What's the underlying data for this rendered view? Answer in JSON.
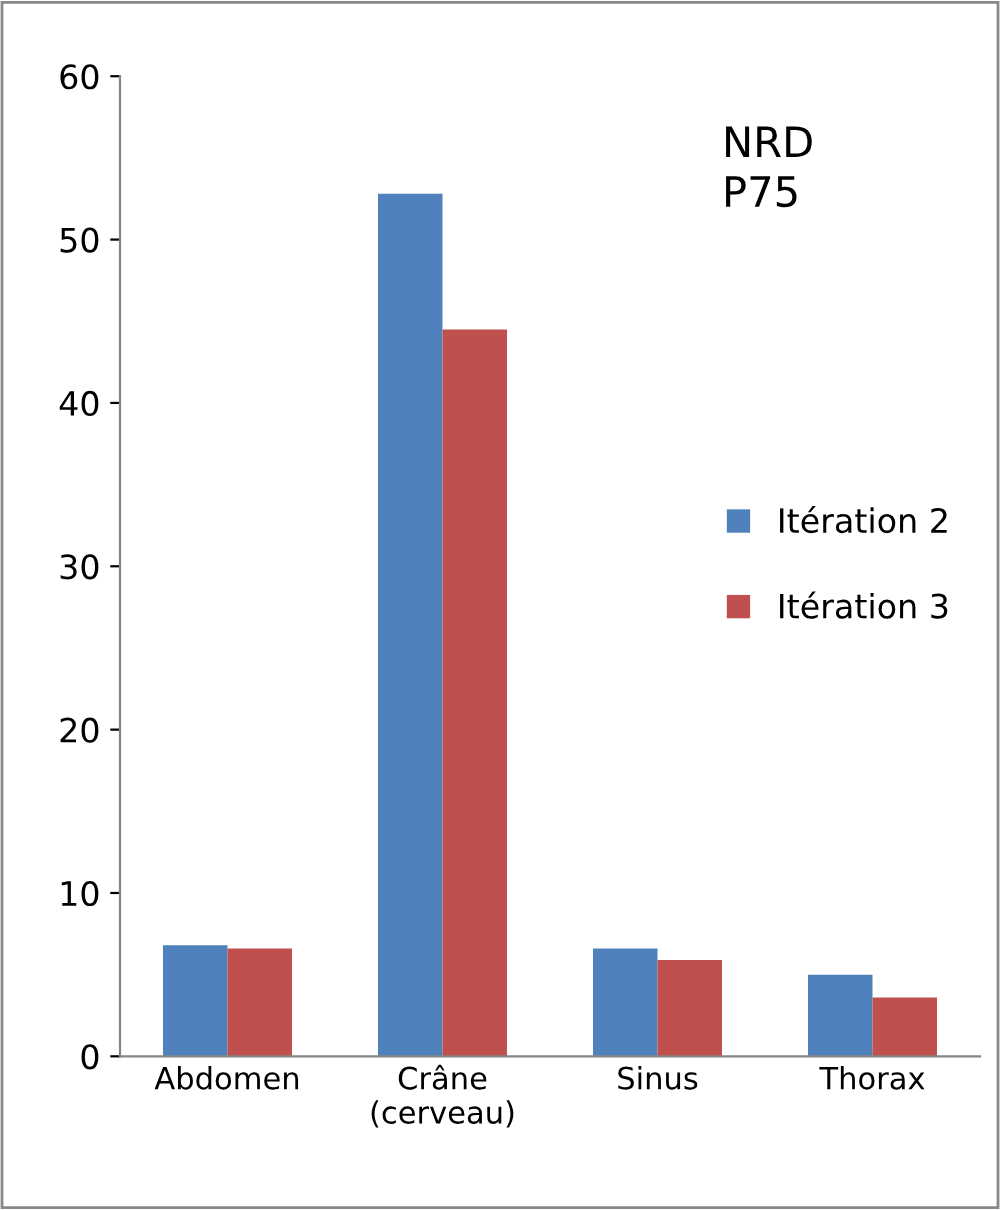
{
  "chart_data": {
    "type": "bar",
    "categories": [
      "Abdomen",
      "Crâne\n(cerveau)",
      "Sinus",
      "Thorax"
    ],
    "series": [
      {
        "name": "Itération 2",
        "color": "#4f81bd",
        "values": [
          6.8,
          52.8,
          6.6,
          5.0
        ]
      },
      {
        "name": "Itération 3",
        "color": "#c0504d",
        "values": [
          6.6,
          44.5,
          5.9,
          3.6
        ]
      }
    ],
    "ylim": [
      0,
      60
    ],
    "yticks": [
      0,
      10,
      20,
      30,
      40,
      50,
      60
    ],
    "grid": false,
    "legend": "right",
    "annotations": [
      "NRD\nP75"
    ]
  }
}
